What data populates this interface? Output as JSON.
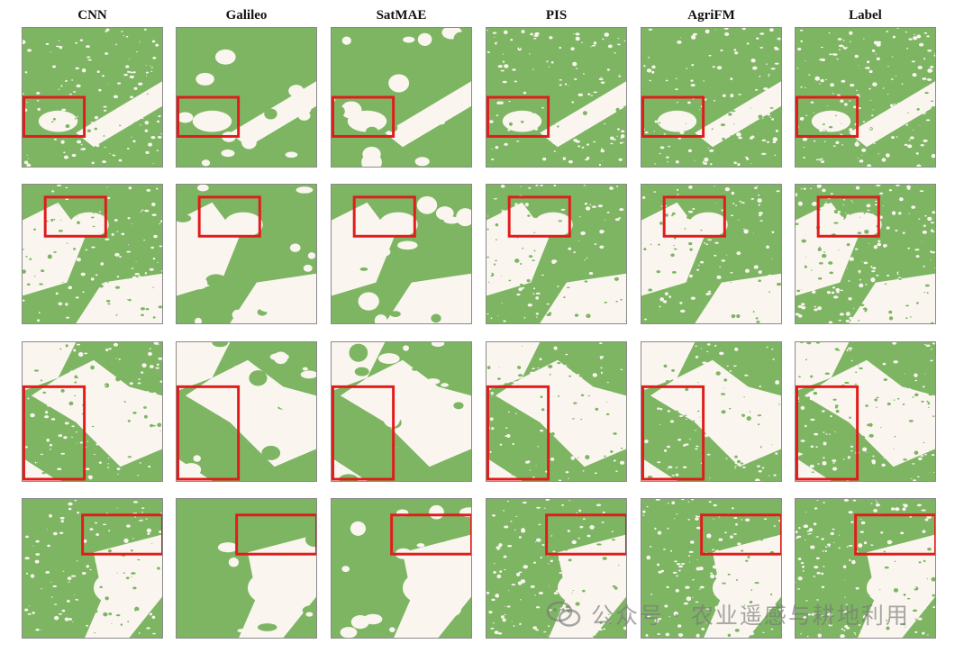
{
  "figure": {
    "columns": [
      "CNN",
      "Galileo",
      "SatMAE",
      "PIS",
      "AgriFM",
      "Label"
    ],
    "rows": 4,
    "colors": {
      "crop": "#7db563",
      "background": "#faf6ef",
      "highlight_box": "#e21b1b",
      "tile_border": "#8a8a8a"
    },
    "watermark": {
      "text": "公众号 · 农业遥感与耕地利用",
      "logo_icon": "wechat-icon"
    }
  }
}
